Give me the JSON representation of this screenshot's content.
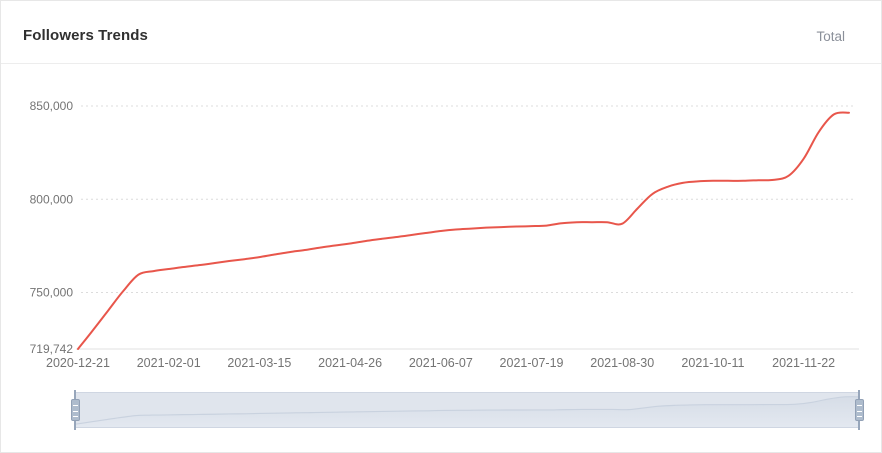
{
  "header": {
    "title": "Followers Trends",
    "total_label": "Total"
  },
  "colors": {
    "line": "#e8564b",
    "grid": "#dcdcdc",
    "axis": "#e0e0e0",
    "tick_text": "#747474",
    "brush_track": "#e0e5ed",
    "brush_area_top": "#d6dde7",
    "brush_area_bottom": "#e3e8f0",
    "brush_line": "#c9d2df",
    "handle_fill": "#aebccd"
  },
  "chart_data": {
    "type": "line",
    "title": "Followers Trends",
    "legend": [
      "Total"
    ],
    "legend_position": "top-right",
    "xlabel": "",
    "ylabel": "",
    "grid": "horizontal-dotted",
    "ylim": [
      719742,
      855500
    ],
    "x": [
      "2020-12-21",
      "2020-12-28",
      "2021-01-04",
      "2021-01-11",
      "2021-01-18",
      "2021-01-25",
      "2021-02-01",
      "2021-02-08",
      "2021-02-15",
      "2021-02-22",
      "2021-03-01",
      "2021-03-08",
      "2021-03-15",
      "2021-03-22",
      "2021-03-29",
      "2021-04-05",
      "2021-04-12",
      "2021-04-19",
      "2021-04-26",
      "2021-05-03",
      "2021-05-10",
      "2021-05-17",
      "2021-05-24",
      "2021-05-31",
      "2021-06-07",
      "2021-06-14",
      "2021-06-21",
      "2021-06-28",
      "2021-07-05",
      "2021-07-12",
      "2021-07-19",
      "2021-07-26",
      "2021-08-02",
      "2021-08-09",
      "2021-08-16",
      "2021-08-23",
      "2021-08-30",
      "2021-09-06",
      "2021-09-13",
      "2021-09-20",
      "2021-09-27",
      "2021-10-04",
      "2021-10-11",
      "2021-10-18",
      "2021-10-25",
      "2021-11-01",
      "2021-11-08",
      "2021-11-15",
      "2021-11-22",
      "2021-11-29",
      "2021-12-06",
      "2021-12-13"
    ],
    "series": [
      {
        "name": "Total",
        "values": [
          719742,
          729900,
          740400,
          750900,
          759600,
          761500,
          762600,
          763700,
          764700,
          765800,
          766900,
          767900,
          769000,
          770400,
          771700,
          772800,
          774100,
          775200,
          776300,
          777600,
          778700,
          779700,
          780800,
          781900,
          783000,
          783800,
          784300,
          784800,
          785100,
          785400,
          785600,
          785900,
          787200,
          787700,
          787700,
          787700,
          786900,
          795000,
          802900,
          806700,
          808800,
          809600,
          809900,
          809900,
          809900,
          810200,
          810400,
          812600,
          821700,
          836100,
          845500,
          846400
        ]
      }
    ],
    "x_tick_indexes": [
      0,
      6,
      12,
      18,
      24,
      30,
      36,
      42,
      48
    ],
    "x_tick_labels": [
      "2020-12-21",
      "2021-02-01",
      "2021-03-15",
      "2021-04-26",
      "2021-06-07",
      "2021-07-19",
      "2021-08-30",
      "2021-10-11",
      "2021-11-22"
    ],
    "y_ticks": [
      {
        "value": 719742,
        "label": "719,742"
      },
      {
        "value": 750000,
        "label": "750,000"
      },
      {
        "value": 800000,
        "label": "800,000"
      },
      {
        "value": 850000,
        "label": "850,000"
      }
    ]
  }
}
